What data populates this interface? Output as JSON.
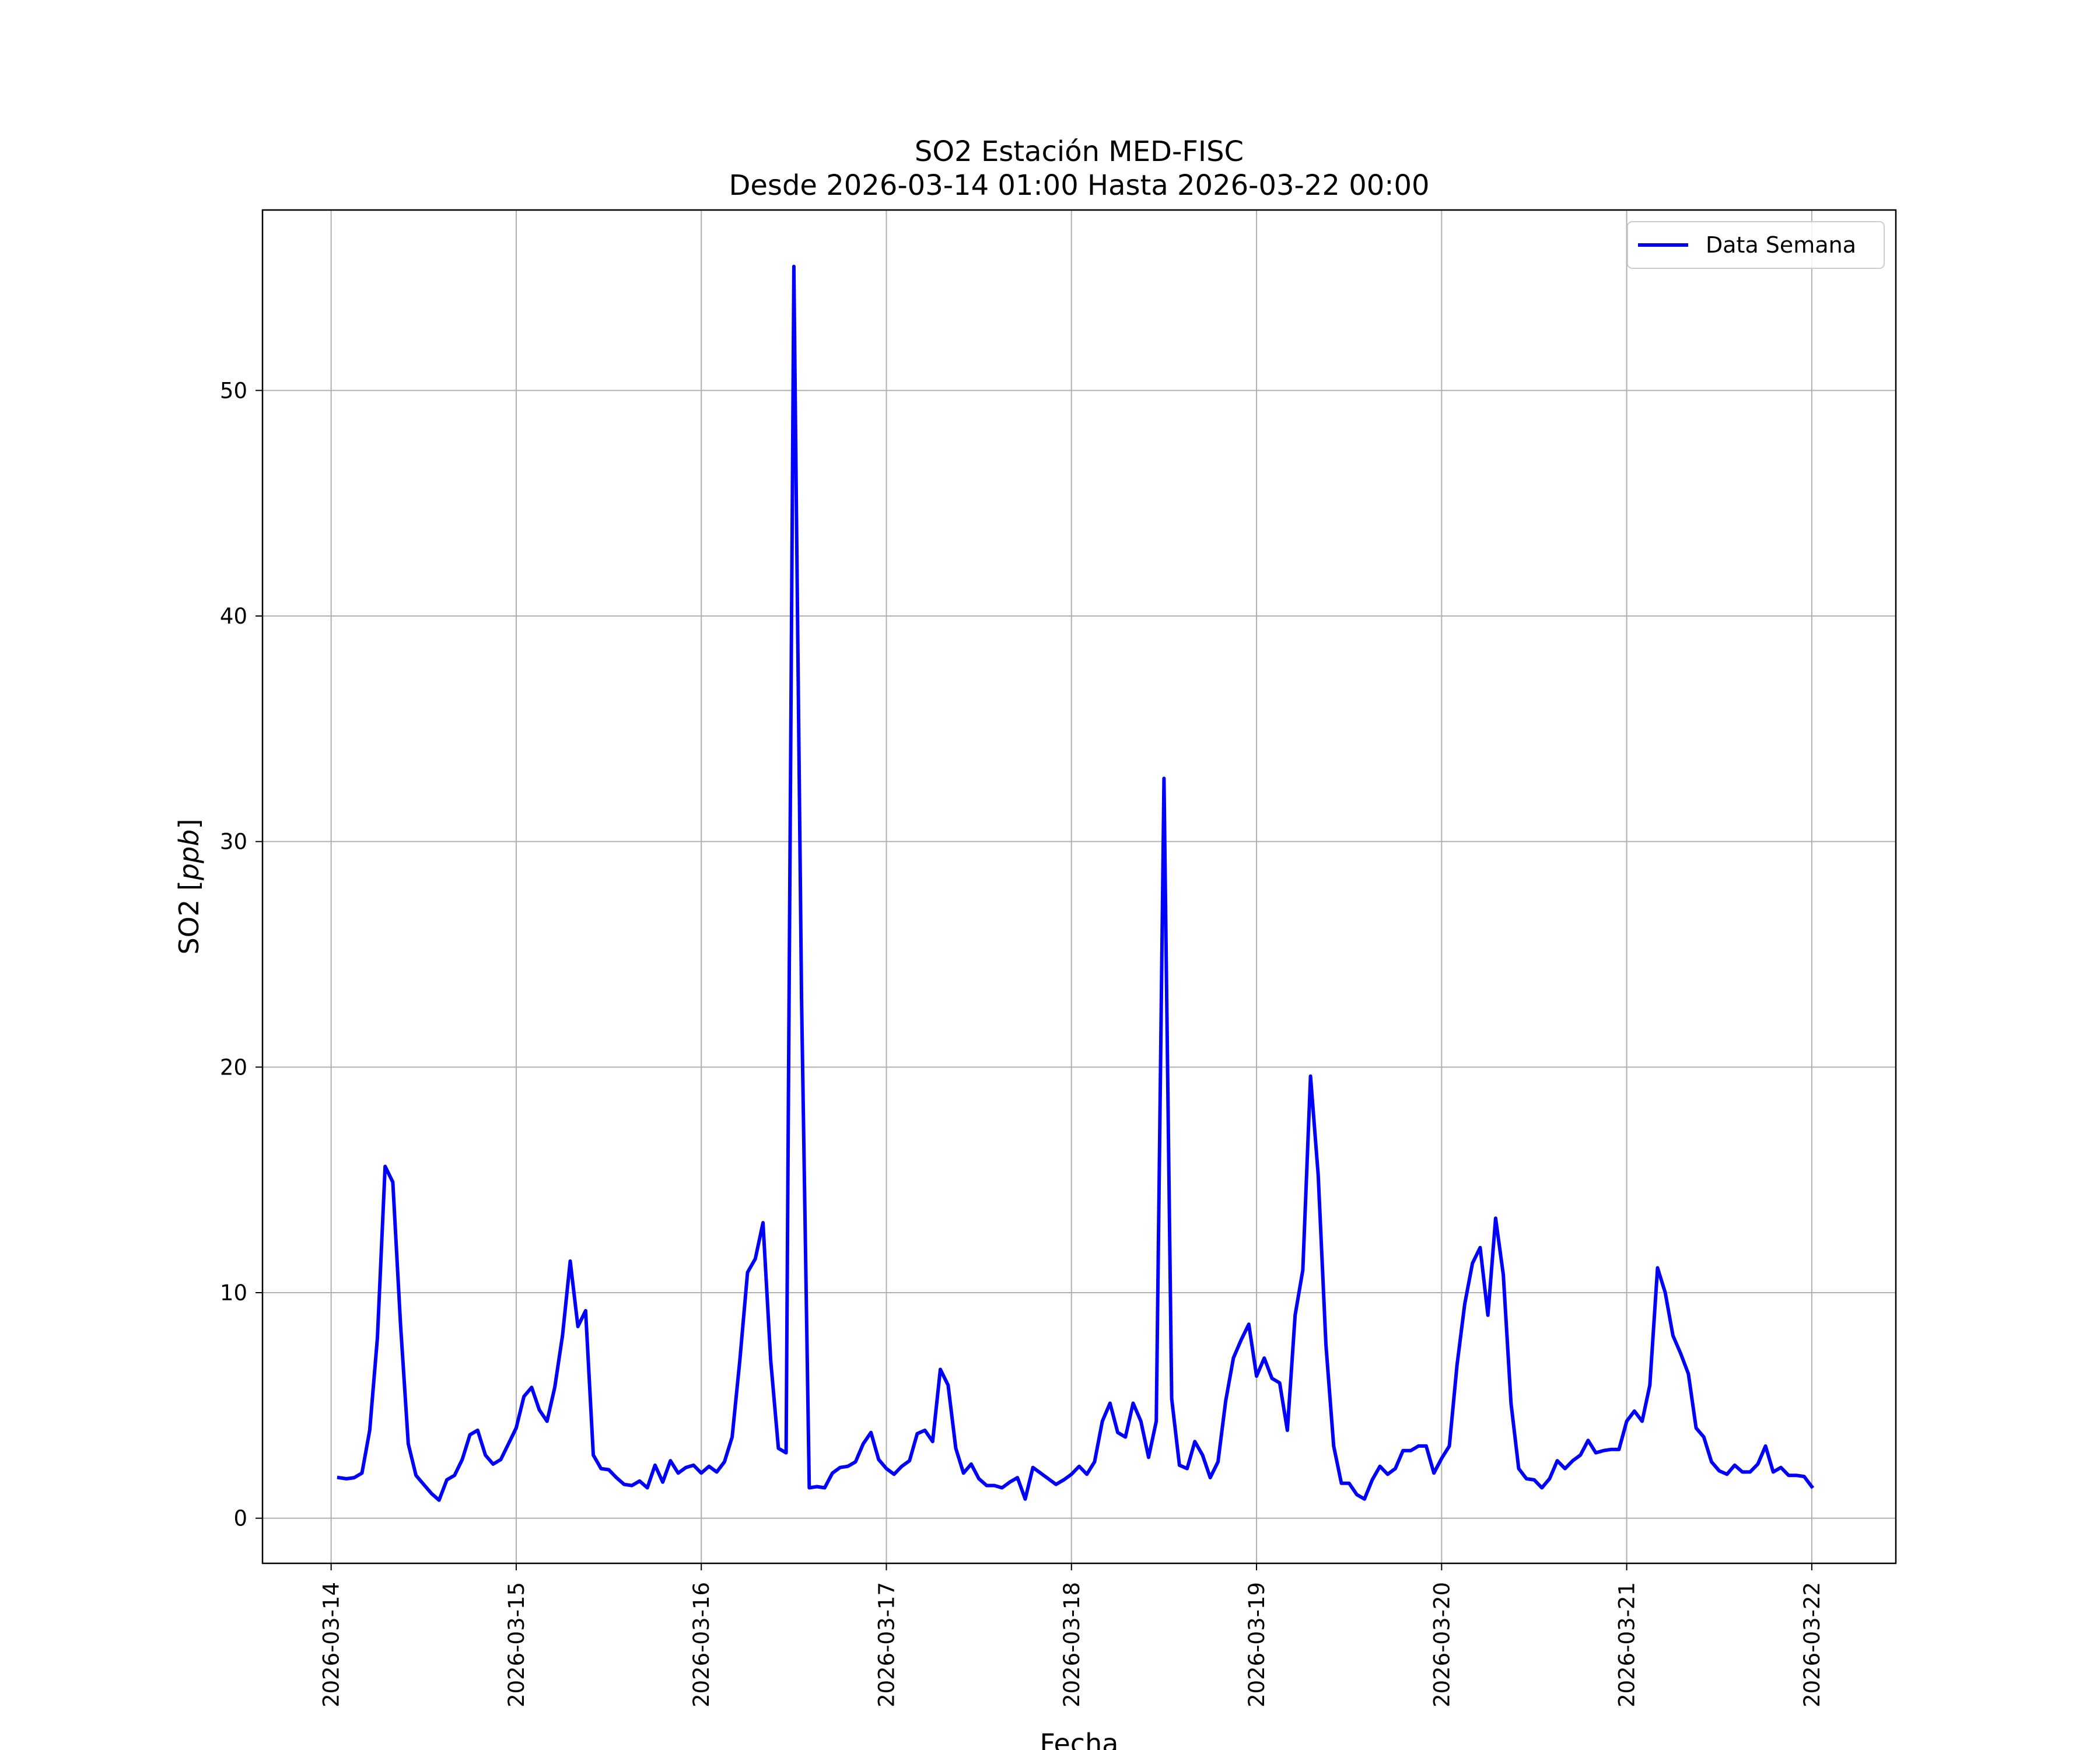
{
  "chart_data": {
    "type": "line",
    "title": "SO2 Estación MED-FISC",
    "subtitle": "Desde 2026-03-14 01:00 Hasta 2026-03-22 00:00",
    "xlabel": "Fecha",
    "ylabel": "SO2 [ppb]",
    "xlim": [
      "2026-03-13 15:06",
      "2026-03-22 10:54"
    ],
    "ylim": [
      -2,
      58
    ],
    "x_ticks": [
      "2026-03-14",
      "2026-03-15",
      "2026-03-16",
      "2026-03-17",
      "2026-03-18",
      "2026-03-19",
      "2026-03-20",
      "2026-03-21",
      "2026-03-22"
    ],
    "y_ticks": [
      0,
      10,
      20,
      30,
      40,
      50
    ],
    "grid": true,
    "legend": "top-right",
    "series": [
      {
        "name": "Data Semana",
        "color": "#0000ff",
        "x": [
          "2026-03-14 01:00",
          "2026-03-14 02:00",
          "2026-03-14 03:00",
          "2026-03-14 04:00",
          "2026-03-14 05:00",
          "2026-03-14 06:00",
          "2026-03-14 07:00",
          "2026-03-14 08:00",
          "2026-03-14 09:00",
          "2026-03-14 10:00",
          "2026-03-14 11:00",
          "2026-03-14 12:00",
          "2026-03-14 13:00",
          "2026-03-14 14:00",
          "2026-03-14 15:00",
          "2026-03-14 16:00",
          "2026-03-14 17:00",
          "2026-03-14 18:00",
          "2026-03-14 19:00",
          "2026-03-14 20:00",
          "2026-03-14 21:00",
          "2026-03-14 22:00",
          "2026-03-14 23:00",
          "2026-03-15 00:00",
          "2026-03-15 01:00",
          "2026-03-15 02:00",
          "2026-03-15 03:00",
          "2026-03-15 04:00",
          "2026-03-15 05:00",
          "2026-03-15 06:00",
          "2026-03-15 07:00",
          "2026-03-15 08:00",
          "2026-03-15 09:00",
          "2026-03-15 10:00",
          "2026-03-15 11:00",
          "2026-03-15 12:00",
          "2026-03-15 13:00",
          "2026-03-15 14:00",
          "2026-03-15 15:00",
          "2026-03-15 16:00",
          "2026-03-15 17:00",
          "2026-03-15 18:00",
          "2026-03-15 19:00",
          "2026-03-15 20:00",
          "2026-03-15 21:00",
          "2026-03-15 22:00",
          "2026-03-15 23:00",
          "2026-03-16 00:00",
          "2026-03-16 01:00",
          "2026-03-16 02:00",
          "2026-03-16 03:00",
          "2026-03-16 04:00",
          "2026-03-16 05:00",
          "2026-03-16 06:00",
          "2026-03-16 07:00",
          "2026-03-16 08:00",
          "2026-03-16 09:00",
          "2026-03-16 10:00",
          "2026-03-16 11:00",
          "2026-03-16 12:00",
          "2026-03-16 13:00",
          "2026-03-16 14:00",
          "2026-03-16 15:00",
          "2026-03-16 16:00",
          "2026-03-16 17:00",
          "2026-03-16 18:00",
          "2026-03-16 19:00",
          "2026-03-16 20:00",
          "2026-03-16 21:00",
          "2026-03-16 22:00",
          "2026-03-16 23:00",
          "2026-03-17 00:00",
          "2026-03-17 01:00",
          "2026-03-17 02:00",
          "2026-03-17 03:00",
          "2026-03-17 04:00",
          "2026-03-17 05:00",
          "2026-03-17 06:00",
          "2026-03-17 07:00",
          "2026-03-17 08:00",
          "2026-03-17 09:00",
          "2026-03-17 10:00",
          "2026-03-17 11:00",
          "2026-03-17 12:00",
          "2026-03-17 13:00",
          "2026-03-17 14:00",
          "2026-03-17 15:00",
          "2026-03-17 16:00",
          "2026-03-17 17:00",
          "2026-03-17 18:00",
          "2026-03-17 19:00",
          "2026-03-17 20:00",
          "2026-03-17 21:00",
          "2026-03-17 22:00",
          "2026-03-17 23:00",
          "2026-03-18 00:00",
          "2026-03-18 01:00",
          "2026-03-18 02:00",
          "2026-03-18 03:00",
          "2026-03-18 04:00",
          "2026-03-18 05:00",
          "2026-03-18 06:00",
          "2026-03-18 07:00",
          "2026-03-18 08:00",
          "2026-03-18 09:00",
          "2026-03-18 10:00",
          "2026-03-18 11:00",
          "2026-03-18 12:00",
          "2026-03-18 13:00",
          "2026-03-18 14:00",
          "2026-03-18 15:00",
          "2026-03-18 16:00",
          "2026-03-18 17:00",
          "2026-03-18 18:00",
          "2026-03-18 19:00",
          "2026-03-18 20:00",
          "2026-03-18 21:00",
          "2026-03-18 22:00",
          "2026-03-18 23:00",
          "2026-03-19 00:00",
          "2026-03-19 01:00",
          "2026-03-19 02:00",
          "2026-03-19 03:00",
          "2026-03-19 04:00",
          "2026-03-19 05:00",
          "2026-03-19 06:00",
          "2026-03-19 07:00",
          "2026-03-19 08:00",
          "2026-03-19 09:00",
          "2026-03-19 10:00",
          "2026-03-19 11:00",
          "2026-03-19 12:00",
          "2026-03-19 13:00",
          "2026-03-19 14:00",
          "2026-03-19 15:00",
          "2026-03-19 16:00",
          "2026-03-19 17:00",
          "2026-03-19 18:00",
          "2026-03-19 19:00",
          "2026-03-19 20:00",
          "2026-03-19 21:00",
          "2026-03-19 22:00",
          "2026-03-19 23:00",
          "2026-03-20 00:00",
          "2026-03-20 01:00",
          "2026-03-20 02:00",
          "2026-03-20 03:00",
          "2026-03-20 04:00",
          "2026-03-20 05:00",
          "2026-03-20 06:00",
          "2026-03-20 07:00",
          "2026-03-20 08:00",
          "2026-03-20 09:00",
          "2026-03-20 10:00",
          "2026-03-20 11:00",
          "2026-03-20 12:00",
          "2026-03-20 13:00",
          "2026-03-20 14:00",
          "2026-03-20 15:00",
          "2026-03-20 16:00",
          "2026-03-20 17:00",
          "2026-03-20 18:00",
          "2026-03-20 19:00",
          "2026-03-20 20:00",
          "2026-03-20 21:00",
          "2026-03-20 22:00",
          "2026-03-20 23:00",
          "2026-03-21 00:00",
          "2026-03-21 01:00",
          "2026-03-21 02:00",
          "2026-03-21 03:00",
          "2026-03-21 04:00",
          "2026-03-21 05:00",
          "2026-03-21 06:00",
          "2026-03-21 07:00",
          "2026-03-21 08:00",
          "2026-03-21 09:00",
          "2026-03-21 10:00",
          "2026-03-21 11:00",
          "2026-03-21 12:00",
          "2026-03-21 13:00",
          "2026-03-21 14:00",
          "2026-03-21 15:00",
          "2026-03-21 16:00",
          "2026-03-21 17:00",
          "2026-03-21 18:00",
          "2026-03-21 19:00",
          "2026-03-21 20:00",
          "2026-03-21 21:00",
          "2026-03-21 22:00",
          "2026-03-21 23:00",
          "2026-03-22 00:00"
        ],
        "y": [
          1.8,
          1.75,
          1.8,
          2.0,
          3.9,
          8.0,
          15.6,
          14.9,
          8.6,
          3.3,
          1.9,
          1.5,
          1.1,
          0.8,
          1.7,
          1.9,
          2.6,
          3.7,
          3.9,
          2.8,
          2.4,
          2.6,
          3.3,
          4.0,
          5.4,
          5.8,
          4.8,
          4.3,
          5.8,
          8.1,
          11.4,
          8.5,
          9.2,
          2.8,
          2.2,
          2.15,
          1.8,
          1.5,
          1.45,
          1.65,
          1.35,
          2.35,
          1.6,
          2.55,
          2.0,
          2.25,
          2.35,
          2.0,
          2.3,
          2.05,
          2.5,
          3.6,
          7.0,
          10.9,
          11.5,
          13.1,
          7.0,
          3.1,
          2.9,
          55.5,
          23.0,
          1.35,
          1.4,
          1.35,
          2.0,
          2.25,
          2.3,
          2.5,
          3.3,
          3.8,
          2.6,
          2.2,
          1.95,
          2.3,
          2.55,
          3.75,
          3.9,
          3.4,
          6.6,
          5.9,
          3.1,
          2.0,
          2.4,
          1.75,
          1.45,
          1.45,
          1.35,
          1.6,
          1.8,
          0.85,
          2.25,
          2.0,
          1.75,
          1.5,
          1.7,
          1.95,
          2.3,
          1.95,
          2.5,
          4.3,
          5.1,
          3.8,
          3.6,
          5.1,
          4.3,
          2.7,
          4.3,
          32.8,
          5.3,
          2.35,
          2.2,
          3.4,
          2.8,
          1.8,
          2.5,
          5.2,
          7.1,
          7.9,
          8.6,
          6.3,
          7.1,
          6.2,
          6.0,
          3.9,
          9.0,
          11.0,
          19.6,
          15.2,
          7.7,
          3.2,
          1.55,
          1.55,
          1.05,
          0.85,
          1.7,
          2.3,
          1.95,
          2.2,
          3.0,
          3.0,
          3.2,
          3.2,
          2.0,
          2.65,
          3.2,
          6.8,
          9.5,
          11.3,
          12.0,
          9.0,
          13.3,
          10.8,
          5.1,
          2.2,
          1.75,
          1.7,
          1.35,
          1.75,
          2.55,
          2.2,
          2.55,
          2.8,
          3.45,
          2.9,
          3.0,
          3.05,
          3.05,
          4.3,
          4.75,
          4.3,
          5.9,
          11.1,
          10.0,
          8.1,
          7.3,
          6.4,
          4.0,
          3.6,
          2.5,
          2.1,
          1.95,
          2.35,
          2.05,
          2.05,
          2.4,
          3.2,
          2.05,
          2.25,
          1.9,
          1.9,
          1.85,
          1.4
        ]
      }
    ]
  }
}
